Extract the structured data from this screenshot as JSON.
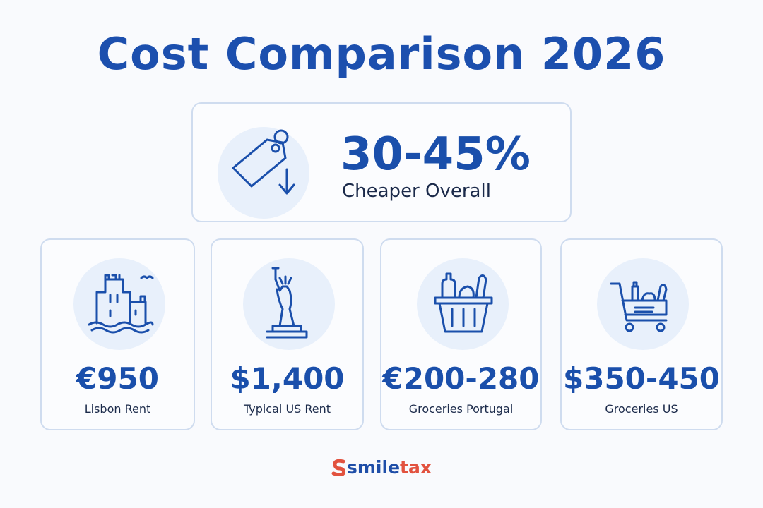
{
  "title": "Cost Comparison 2026",
  "highlight": {
    "value": "30-45%",
    "label": "Cheaper Overall"
  },
  "cards": [
    {
      "value": "€950",
      "label": "Lisbon Rent"
    },
    {
      "value": "$1,400",
      "label": "Typical US Rent"
    },
    {
      "value": "€200-280",
      "label": "Groceries Portugal"
    },
    {
      "value": "$350-450",
      "label": "Groceries US"
    }
  ],
  "brand": {
    "first": "smile",
    "second": "tax"
  }
}
